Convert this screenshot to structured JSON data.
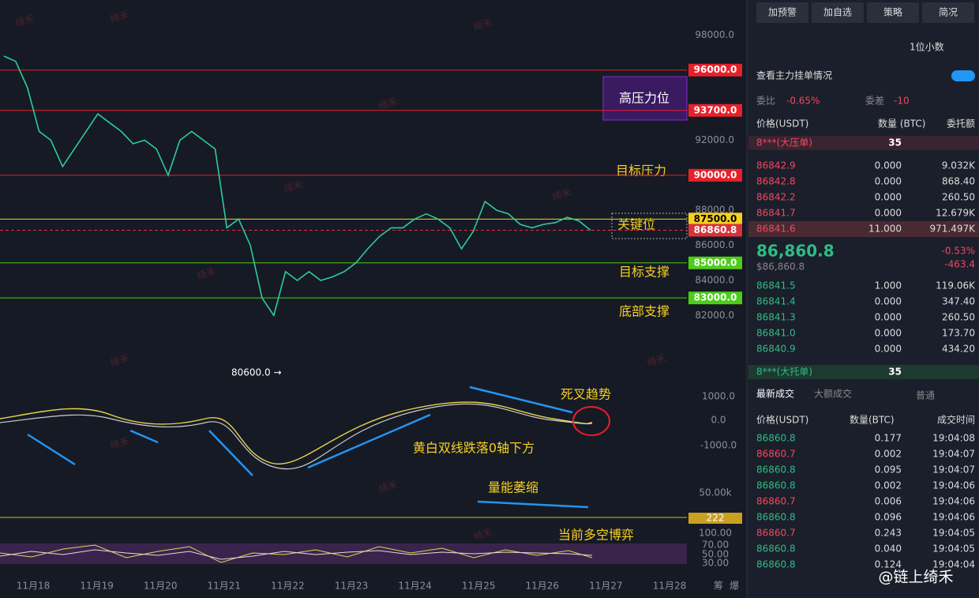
{
  "chart": {
    "ylim": [
      78500,
      100000
    ],
    "yticks": [
      {
        "value": 98000,
        "label": "98000.0"
      },
      {
        "value": 92000,
        "label": "92000.0"
      },
      {
        "value": 88000,
        "label": "88000.0"
      },
      {
        "value": 86000,
        "label": "86000.0"
      },
      {
        "value": 84000,
        "label": "84000.0"
      },
      {
        "value": 82000,
        "label": "82000.0"
      }
    ],
    "levels": [
      {
        "value": 96000,
        "label": "96000.0",
        "color": "#e8202a"
      },
      {
        "value": 93700,
        "label": "93700.0",
        "color": "#e8202a"
      },
      {
        "value": 90000,
        "label": "90000.0",
        "color": "#e8202a"
      },
      {
        "value": 87500,
        "label": "87500.0",
        "color": "#f5d020"
      },
      {
        "value": 86860.8,
        "label": "86860.8",
        "color": "#d9323a"
      },
      {
        "value": 85000,
        "label": "85000.0",
        "color": "#4ccd1a"
      },
      {
        "value": 83000,
        "label": "83000.0",
        "color": "#4ccd1a"
      }
    ],
    "close": [
      96800,
      96500,
      95000,
      92500,
      92000,
      90500,
      91500,
      92500,
      93500,
      93000,
      92500,
      91800,
      92000,
      91500,
      90000,
      92000,
      92500,
      92000,
      91500,
      87000,
      87500,
      86000,
      83000,
      82000,
      84500,
      84000,
      84500,
      84000,
      84200,
      84500,
      85000,
      85800,
      86500,
      87000,
      87000,
      87500,
      87800,
      87500,
      87000,
      85800,
      86800,
      88500,
      88000,
      87800,
      87200,
      87000,
      87200,
      87300,
      87600,
      87400,
      86860.8
    ],
    "low_marker": "80600.0 →",
    "dates": [
      "11月18",
      "11月19",
      "11月20",
      "11月21",
      "11月22",
      "11月23",
      "11月24",
      "11月25",
      "11月26",
      "11月27",
      "11月28"
    ],
    "axis_tools": [
      "筹",
      "爆"
    ],
    "macd_ticks": [
      "1000.0",
      "0.0",
      "-1000.0"
    ],
    "volume_tick": "50.00k",
    "volume_label": "222",
    "rsi_ticks": [
      "100.00",
      "70.00",
      "50.00",
      "30.00"
    ],
    "annotations": {
      "high_pressure": "高压力位",
      "target_pressure": "目标压力",
      "key_level": "关键位",
      "target_support": "目标支撑",
      "bottom_support": "底部支撑",
      "death_cross": "死叉趋势",
      "macd_note": "黄白双线跌落0轴下方",
      "volume_note": "量能萎缩",
      "rsi_note": "当前多空博弈"
    },
    "watermark": "绮禾"
  },
  "panel": {
    "buttons": [
      "加预警",
      "加自选",
      "策略",
      "简况"
    ],
    "precision": "1位小数",
    "main_orders": "查看主力挂单情况",
    "ratio_label": "委比",
    "ratio": "-0.65%",
    "diff_label": "委差",
    "diff": "-10",
    "headers": [
      "价格(USDT)",
      "数量 (BTC)",
      "委托额"
    ],
    "big_ask": {
      "name": "8***(大压单)",
      "qty": "35"
    },
    "asks": [
      [
        "86842.9",
        "0.000",
        "9.032K"
      ],
      [
        "86842.8",
        "0.000",
        "868.40"
      ],
      [
        "86842.2",
        "0.000",
        "260.50"
      ],
      [
        "86841.7",
        "0.000",
        "12.679K"
      ],
      [
        "86841.6",
        "11.000",
        "971.497K"
      ]
    ],
    "mid_price": "86,860.8",
    "mid_usd": "$86,860.8",
    "change_pct": "-0.53%",
    "change": "-463.4",
    "bids": [
      [
        "86841.5",
        "1.000",
        "119.06K"
      ],
      [
        "86841.4",
        "0.000",
        "347.40"
      ],
      [
        "86841.3",
        "0.000",
        "260.50"
      ],
      [
        "86841.0",
        "0.000",
        "173.70"
      ],
      [
        "86840.9",
        "0.000",
        "434.20"
      ]
    ],
    "big_bid": {
      "name": "8***(大托单)",
      "qty": "35"
    },
    "trade_tabs": [
      "最新成交",
      "大额成交"
    ],
    "normal": "普通",
    "trade_headers": [
      "价格(USDT)",
      "数量(BTC)",
      "成交时间"
    ],
    "trades": [
      [
        "86860.8",
        "0.177",
        "19:04:08"
      ],
      [
        "86860.7",
        "0.002",
        "19:04:07"
      ],
      [
        "86860.8",
        "0.095",
        "19:04:07"
      ],
      [
        "86860.8",
        "0.002",
        "19:04:06"
      ],
      [
        "86860.7",
        "0.006",
        "19:04:06"
      ],
      [
        "86860.8",
        "0.096",
        "19:04:06"
      ],
      [
        "86860.7",
        "0.243",
        "19:04:05"
      ],
      [
        "86860.8",
        "0.040",
        "19:04:05"
      ],
      [
        "86860.8",
        "0.124",
        "19:04:04"
      ]
    ],
    "footer_watermark": "@链上绮禾"
  }
}
